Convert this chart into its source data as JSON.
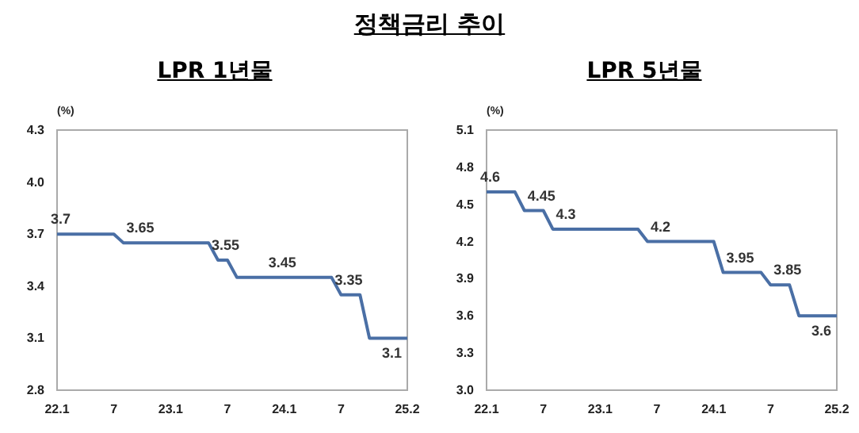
{
  "chart_data": [
    {
      "type": "other",
      "title": "정책금리 추이"
    },
    {
      "type": "line",
      "title": "LPR 1년물",
      "ylabel": "(%)",
      "categories": [
        "22.1",
        null,
        null,
        null,
        null,
        null,
        "7",
        null,
        null,
        null,
        null,
        null,
        "23.1",
        null,
        null,
        null,
        null,
        null,
        "7",
        null,
        null,
        null,
        null,
        null,
        "24.1",
        null,
        null,
        null,
        null,
        null,
        "7",
        null,
        null,
        null,
        null,
        null,
        null,
        "25.2"
      ],
      "series": [
        {
          "color": "#4a6fa5",
          "values": [
            3.7,
            3.7,
            3.7,
            3.7,
            3.7,
            3.7,
            3.7,
            3.65,
            3.65,
            3.65,
            3.65,
            3.65,
            3.65,
            3.65,
            3.65,
            3.65,
            3.65,
            3.55,
            3.55,
            3.45,
            3.45,
            3.45,
            3.45,
            3.45,
            3.45,
            3.45,
            3.45,
            3.45,
            3.45,
            3.45,
            3.35,
            3.35,
            3.35,
            3.1,
            3.1,
            3.1,
            3.1,
            3.1
          ],
          "value_labels": [
            "3.7",
            null,
            null,
            null,
            null,
            null,
            null,
            null,
            "3.65",
            null,
            null,
            null,
            null,
            null,
            null,
            null,
            null,
            "3.55",
            null,
            null,
            null,
            null,
            null,
            "3.45",
            null,
            null,
            null,
            null,
            null,
            null,
            "3.35",
            null,
            null,
            null,
            null,
            "3.1",
            null,
            null
          ]
        }
      ],
      "ylim": [
        2.8,
        4.3
      ],
      "yticks": [
        2.8,
        {
          "value": 3.1,
          "label": "3.1"
        },
        3.4,
        3.7,
        {
          "value": 4,
          "label": "4.0"
        },
        4.3
      ],
      "grid": false,
      "marker": "none",
      "line_style": "solid"
    },
    {
      "type": "line",
      "title": "LPR 5년물",
      "ylabel": "(%)",
      "categories": [
        "22.1",
        null,
        null,
        null,
        null,
        null,
        "7",
        null,
        null,
        null,
        null,
        null,
        "23.1",
        null,
        null,
        null,
        null,
        null,
        "7",
        null,
        null,
        null,
        null,
        null,
        "24.1",
        null,
        null,
        null,
        null,
        null,
        "7",
        null,
        null,
        null,
        null,
        null,
        null,
        "25.2"
      ],
      "series": [
        {
          "color": "#4a6fa5",
          "values": [
            4.6,
            4.6,
            4.6,
            4.6,
            4.45,
            4.45,
            4.45,
            4.3,
            4.3,
            4.3,
            4.3,
            4.3,
            4.3,
            4.3,
            4.3,
            4.3,
            4.3,
            4.2,
            4.2,
            4.2,
            4.2,
            4.2,
            4.2,
            4.2,
            4.2,
            3.95,
            3.95,
            3.95,
            3.95,
            3.95,
            3.85,
            3.85,
            3.85,
            3.6,
            3.6,
            3.6,
            3.6,
            3.6
          ],
          "value_labels": [
            "4.6",
            null,
            null,
            null,
            null,
            "4.45",
            null,
            null,
            "4.3",
            null,
            null,
            null,
            null,
            null,
            null,
            null,
            null,
            null,
            "4.2",
            null,
            null,
            null,
            null,
            null,
            null,
            null,
            "3.95",
            null,
            null,
            null,
            null,
            "3.85",
            null,
            null,
            null,
            "3.6",
            null,
            null
          ]
        }
      ],
      "ylim": [
        3.0,
        5.1
      ],
      "yticks": [
        {
          "value": 3,
          "label": "3.0"
        },
        3.3,
        3.6,
        3.9,
        4.2,
        4.5,
        4.8,
        5.1
      ],
      "grid": false,
      "marker": "none",
      "line_style": "solid"
    }
  ]
}
